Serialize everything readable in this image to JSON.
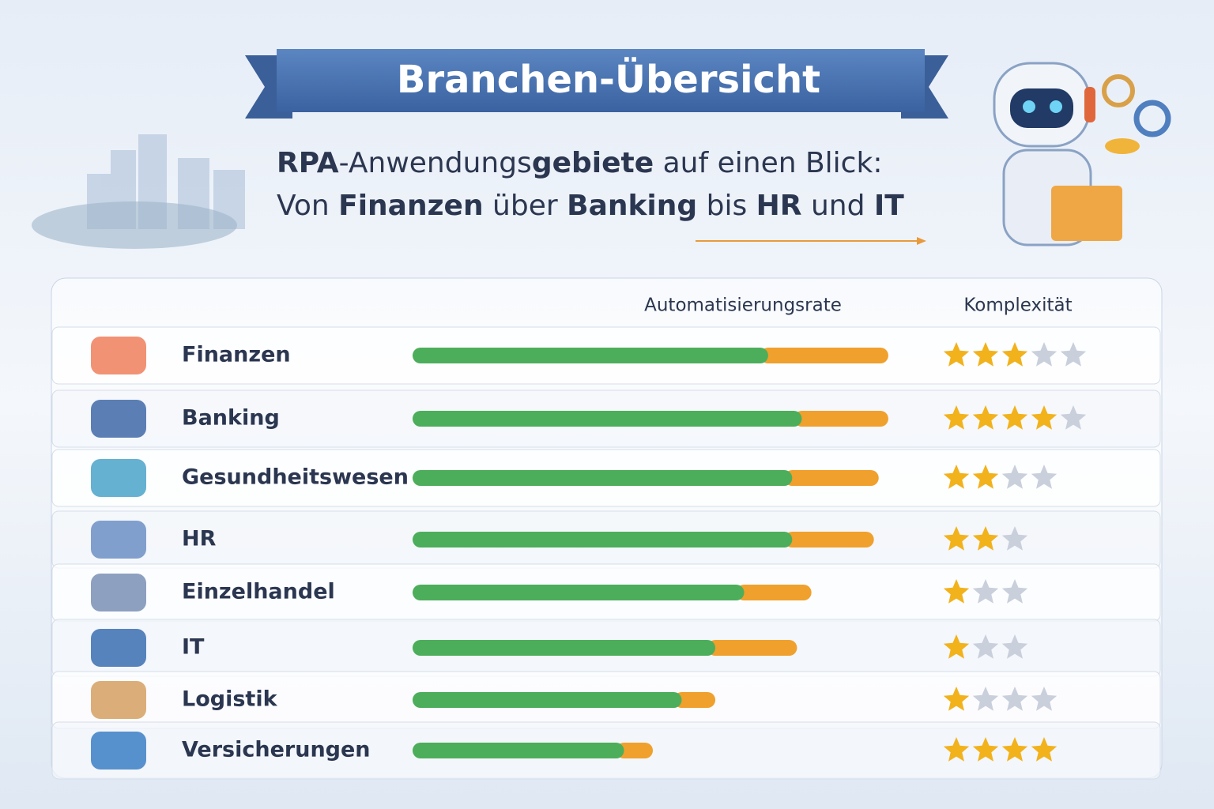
{
  "header": {
    "title": "Branchen-Übersicht",
    "subtitle": [
      [
        {
          "text": "RPA",
          "bold": true
        },
        {
          "text": "-Anwendungs",
          "bold": false
        },
        {
          "text": "gebiete",
          "bold": true
        },
        {
          "text": " auf einen Blick:",
          "bold": false
        }
      ],
      [
        {
          "text": "Von ",
          "bold": false
        },
        {
          "text": "Finanzen",
          "bold": true
        },
        {
          "text": " über ",
          "bold": false
        },
        {
          "text": "Banking",
          "bold": true
        },
        {
          "text": " bis ",
          "bold": false
        },
        {
          "text": "HR",
          "bold": true
        },
        {
          "text": " und ",
          "bold": false
        },
        {
          "text": "IT",
          "bold": true
        }
      ]
    ]
  },
  "table": {
    "columns": [
      "Automatisierungsrate",
      "Komplexität"
    ],
    "xlim": [
      0,
      100
    ],
    "colors": {
      "base": "#4cae5a",
      "extra": "#f0a02c",
      "star": "#f2b21c",
      "star_empty": "#c9cfdb"
    },
    "rows": [
      {
        "label": "Finanzen",
        "base": 74,
        "extra": 25,
        "stars": 3,
        "star_total": 5
      },
      {
        "label": "Banking",
        "base": 81,
        "extra": 18,
        "stars": 4,
        "star_total": 5
      },
      {
        "label": "Gesundheitswesen",
        "base": 79,
        "extra": 18,
        "stars": 2,
        "star_total": 4
      },
      {
        "label": "HR",
        "base": 79,
        "extra": 17,
        "stars": 2,
        "star_total": 3
      },
      {
        "label": "Einzelhandel",
        "base": 69,
        "extra": 14,
        "stars": 1,
        "star_total": 3
      },
      {
        "label": "IT",
        "base": 63,
        "extra": 17,
        "stars": 1,
        "star_total": 3
      },
      {
        "label": "Logistik",
        "base": 56,
        "extra": 7,
        "stars": 1,
        "star_total": 4
      },
      {
        "label": "Versicherungen",
        "base": 44,
        "extra": 6,
        "stars": 4,
        "star_total": 4
      }
    ]
  }
}
